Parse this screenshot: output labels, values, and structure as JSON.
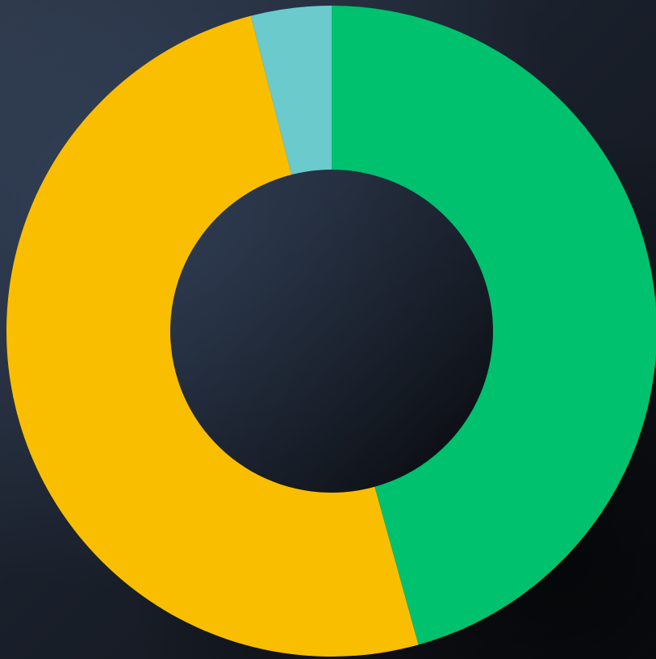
{
  "chart_data": {
    "type": "pie",
    "variant": "donut",
    "title": "",
    "legend": "none",
    "slices": [
      {
        "label": "",
        "value": 45.7,
        "color": "#00C16E"
      },
      {
        "label": "",
        "value": 50.3,
        "color": "#FABE00"
      },
      {
        "label": "",
        "value": 4.0,
        "color": "#6ACACC"
      }
    ]
  },
  "theme": {
    "background": "#1a202b"
  }
}
